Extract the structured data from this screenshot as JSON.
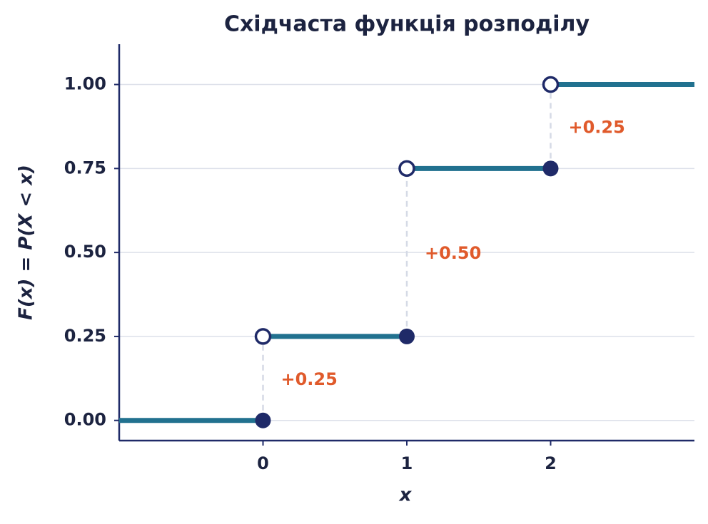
{
  "chart_data": {
    "type": "step",
    "title": "Східчаста функція розподілу",
    "x_label": "x",
    "y_label": "F(x) = P(X < x)",
    "x": [
      0,
      1,
      2
    ],
    "initial_value": 0,
    "values": [
      0.25,
      0.75,
      1.0
    ],
    "jumps": [
      0.25,
      0.5,
      0.25
    ],
    "jump_labels": [
      "+0.25",
      "+0.50",
      "+0.25"
    ],
    "color": "#21718f",
    "point_color": "#1f2a68",
    "label_color": "#e05a2b",
    "xlim": [
      -1,
      3
    ],
    "ylim": [
      -0.06,
      1.12
    ],
    "xticks": [
      0,
      1,
      2
    ],
    "yticks": [
      {
        "value": 0,
        "label": "0.00"
      },
      {
        "value": 0.25,
        "label": "0.25"
      },
      {
        "value": 0.5,
        "label": "0.50"
      },
      {
        "value": 0.75,
        "label": "0.75"
      },
      {
        "value": 1.0,
        "label": "1.00"
      }
    ],
    "grid": true
  }
}
